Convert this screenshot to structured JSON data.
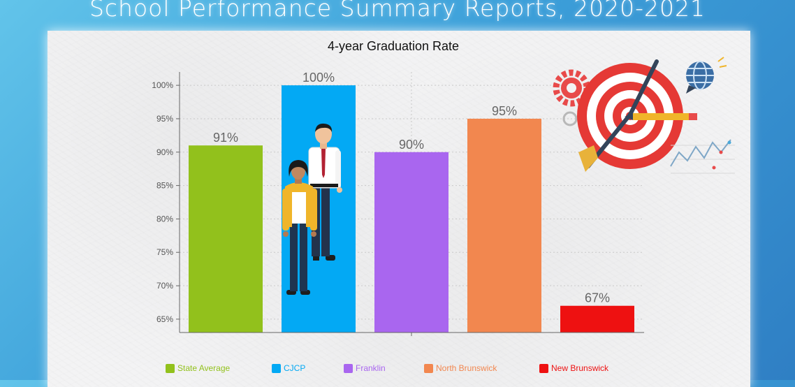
{
  "page": {
    "title": "School Performance Summary Reports, 2020-2021"
  },
  "chart_data": {
    "type": "bar",
    "title": "4-year Graduation Rate",
    "categories": [
      "State Average",
      "CJCP",
      "Franklin",
      "North Brunswick",
      "New Brunswick"
    ],
    "values": [
      91,
      100,
      90,
      95,
      67
    ],
    "value_labels": [
      "91%",
      "100%",
      "90%",
      "95%",
      "67%"
    ],
    "colors": [
      "#92c11c",
      "#03a9f4",
      "#a966ef",
      "#f2874f",
      "#ee1111"
    ],
    "ylim": [
      63,
      102
    ],
    "y_ticks": [
      65,
      70,
      75,
      80,
      85,
      90,
      95,
      100
    ],
    "y_tick_labels": [
      "65%",
      "70%",
      "75%",
      "80%",
      "85%",
      "90%",
      "95%",
      "100%"
    ],
    "grid": true,
    "legend": "bottom"
  }
}
